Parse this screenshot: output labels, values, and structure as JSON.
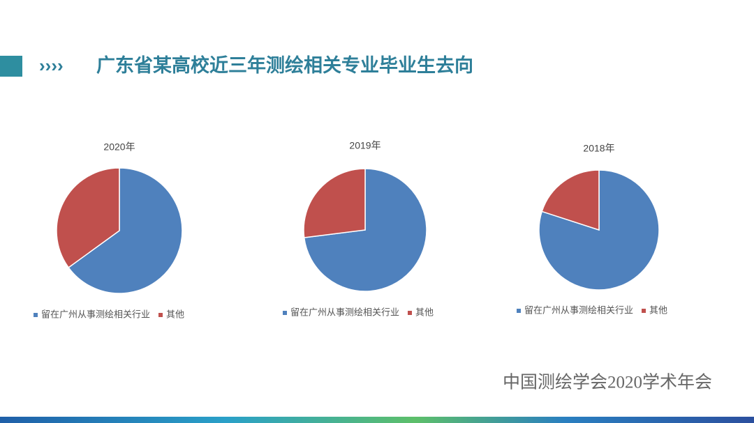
{
  "heading_marker": "››››",
  "heading": "广东省某高校近三年测绘相关专业毕业生去向",
  "footer": "中国测绘学会2020学术年会",
  "chart_data": [
    {
      "type": "pie",
      "title": "2020年",
      "categories": [
        "留在广州从事测绘相关行业",
        "其他"
      ],
      "values": [
        65,
        35
      ],
      "colors": [
        "#4f81bd",
        "#c0504d"
      ]
    },
    {
      "type": "pie",
      "title": "2019年",
      "categories": [
        "留在广州从事测绘相关行业",
        "其他"
      ],
      "values": [
        73,
        27
      ],
      "colors": [
        "#4f81bd",
        "#c0504d"
      ]
    },
    {
      "type": "pie",
      "title": "2018年",
      "categories": [
        "留在广州从事测绘相关行业",
        "其他"
      ],
      "values": [
        80,
        20
      ],
      "colors": [
        "#4f81bd",
        "#c0504d"
      ]
    }
  ]
}
